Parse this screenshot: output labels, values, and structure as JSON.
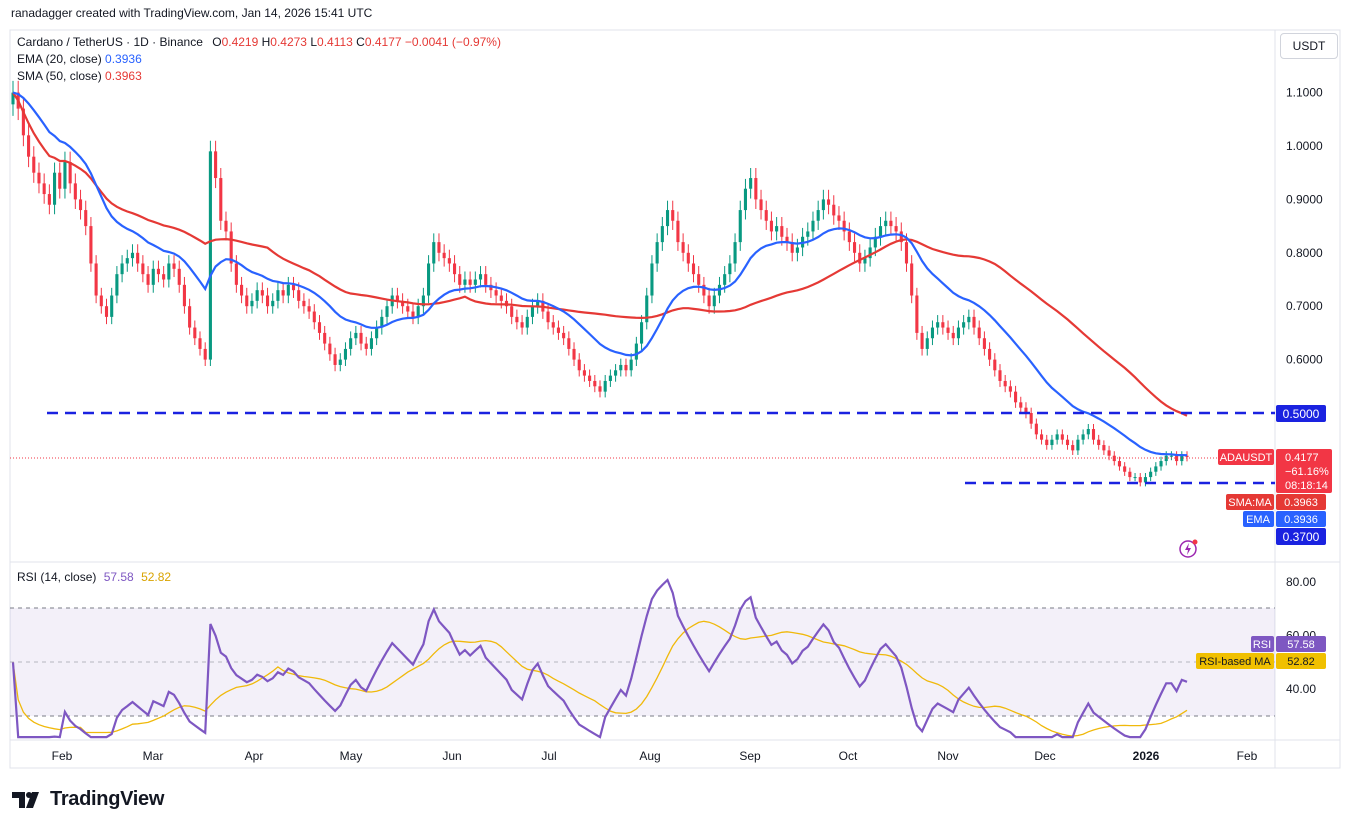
{
  "header": {
    "credit": "ranadagger created with TradingView.com, Jan 14, 2026 15:41 UTC",
    "symbol_line": "Cardano / TetherUS · 1D · Binance",
    "ohlc": {
      "o_label": "O",
      "o": "0.4219",
      "h_label": "H",
      "h": "0.4273",
      "l_label": "L",
      "l": "0.4113",
      "c_label": "C",
      "c": "0.4177",
      "change": "−0.0041 (−0.97%)"
    },
    "ema_label": "EMA (20, close)",
    "ema_value": "0.3936",
    "sma_label": "SMA (50, close)",
    "sma_value": "0.3963",
    "currency_button": "USDT"
  },
  "rsi_panel": {
    "label": "RSI (14, close)",
    "rsi_value": "57.58",
    "ma_value": "52.82"
  },
  "price_tags": {
    "level_500": "0.5000",
    "symbol": "ADAUSDT",
    "price": "0.4177",
    "pct": "−61.16%",
    "countdown": "08:18:14",
    "sma_tag": "SMA:MA",
    "sma_val": "0.3963",
    "ema_tag": "EMA",
    "ema_val": "0.3936",
    "level_370": "0.3700"
  },
  "rsi_tags": {
    "rsi_label": "RSI",
    "rsi_val": "57.58",
    "ma_label": "RSI-based MA",
    "ma_val": "52.82"
  },
  "footer": {
    "brand": "TradingView"
  },
  "colors": {
    "up": "#089981",
    "down": "#f23645",
    "ema": "#2962ff",
    "sma": "#e53935",
    "level": "#0000ff",
    "rsi": "#7e57c2",
    "rsi_ma": "#f0b90b"
  },
  "chart_data": [
    {
      "type": "candlestick",
      "title": "Cardano / TetherUS · 1D · Binance",
      "y_axis_ticks": [
        "1.1000",
        "1.0000",
        "0.9000",
        "0.8000",
        "0.7000",
        "0.6000",
        "0.5000",
        "0.3700"
      ],
      "x_axis_ticks": [
        "Feb",
        "Mar",
        "Apr",
        "May",
        "Jun",
        "Jul",
        "Aug",
        "Sep",
        "Oct",
        "Nov",
        "Dec",
        "2026",
        "Feb"
      ],
      "x_start": "2025-01-14",
      "approx_close_series_description": "daily closes read from chart (approx)",
      "close": [
        1.1,
        1.07,
        1.02,
        0.98,
        0.95,
        0.93,
        0.91,
        0.89,
        0.95,
        0.92,
        0.97,
        0.93,
        0.9,
        0.88,
        0.85,
        0.78,
        0.72,
        0.7,
        0.68,
        0.72,
        0.76,
        0.78,
        0.79,
        0.8,
        0.78,
        0.76,
        0.74,
        0.77,
        0.76,
        0.75,
        0.78,
        0.77,
        0.74,
        0.7,
        0.66,
        0.64,
        0.62,
        0.6,
        0.99,
        0.94,
        0.86,
        0.84,
        0.78,
        0.74,
        0.72,
        0.7,
        0.71,
        0.73,
        0.72,
        0.7,
        0.71,
        0.73,
        0.72,
        0.74,
        0.73,
        0.71,
        0.7,
        0.69,
        0.67,
        0.65,
        0.63,
        0.61,
        0.59,
        0.6,
        0.62,
        0.64,
        0.65,
        0.63,
        0.62,
        0.64,
        0.66,
        0.68,
        0.7,
        0.72,
        0.71,
        0.7,
        0.69,
        0.68,
        0.7,
        0.72,
        0.78,
        0.82,
        0.8,
        0.79,
        0.78,
        0.76,
        0.74,
        0.75,
        0.74,
        0.75,
        0.76,
        0.74,
        0.73,
        0.72,
        0.71,
        0.7,
        0.68,
        0.67,
        0.66,
        0.68,
        0.7,
        0.71,
        0.69,
        0.67,
        0.66,
        0.65,
        0.64,
        0.62,
        0.6,
        0.58,
        0.57,
        0.56,
        0.55,
        0.54,
        0.56,
        0.57,
        0.58,
        0.59,
        0.58,
        0.6,
        0.63,
        0.67,
        0.72,
        0.78,
        0.82,
        0.85,
        0.88,
        0.86,
        0.82,
        0.8,
        0.78,
        0.76,
        0.74,
        0.72,
        0.7,
        0.72,
        0.74,
        0.76,
        0.78,
        0.82,
        0.88,
        0.92,
        0.94,
        0.9,
        0.88,
        0.86,
        0.84,
        0.85,
        0.83,
        0.82,
        0.8,
        0.81,
        0.83,
        0.84,
        0.86,
        0.88,
        0.9,
        0.89,
        0.87,
        0.86,
        0.84,
        0.82,
        0.8,
        0.78,
        0.79,
        0.81,
        0.83,
        0.85,
        0.86,
        0.85,
        0.84,
        0.82,
        0.78,
        0.72,
        0.65,
        0.62,
        0.64,
        0.66,
        0.67,
        0.66,
        0.65,
        0.64,
        0.66,
        0.67,
        0.68,
        0.66,
        0.64,
        0.62,
        0.6,
        0.58,
        0.56,
        0.55,
        0.54,
        0.52,
        0.51,
        0.5,
        0.48,
        0.46,
        0.45,
        0.44,
        0.45,
        0.46,
        0.45,
        0.44,
        0.43,
        0.45,
        0.46,
        0.47,
        0.45,
        0.44,
        0.43,
        0.42,
        0.41,
        0.4,
        0.39,
        0.38,
        0.38,
        0.37,
        0.38,
        0.39,
        0.4,
        0.41,
        0.42,
        0.42,
        0.41,
        0.42,
        0.4177
      ]
    },
    {
      "type": "line",
      "title": "RSI (14, close)",
      "y_axis_ticks": [
        "80.00",
        "60.00",
        "40.00"
      ],
      "series": [
        {
          "name": "RSI",
          "last": 57.58
        },
        {
          "name": "RSI-based MA",
          "last": 52.82
        }
      ],
      "bands": [
        70,
        30
      ]
    }
  ],
  "overlays": {
    "horizontal_levels": [
      0.5,
      0.37
    ]
  }
}
